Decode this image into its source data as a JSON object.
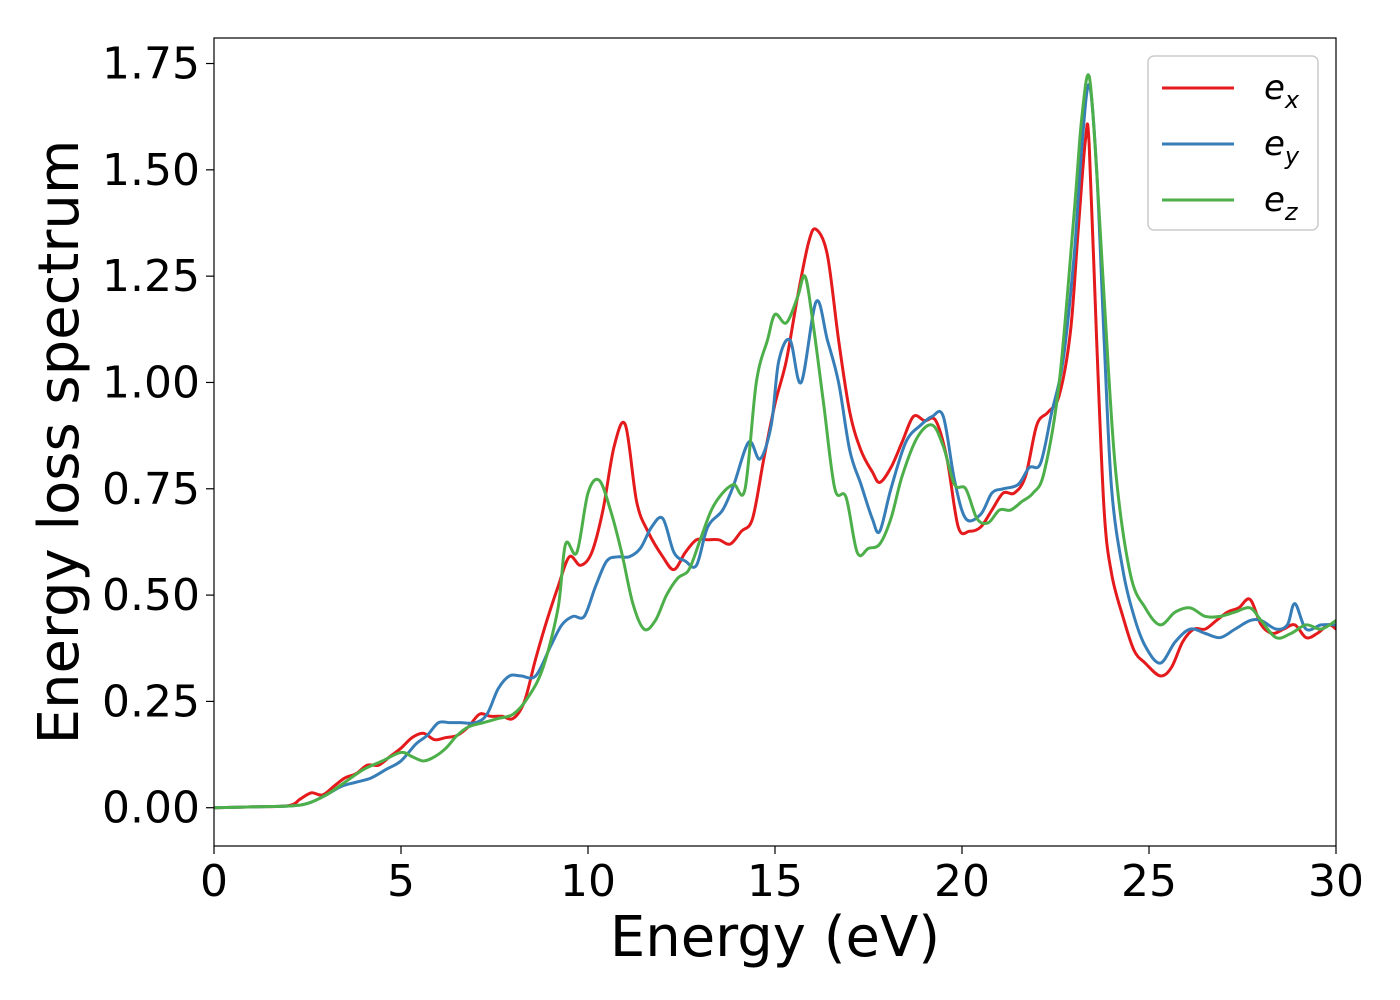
{
  "chart_data": {
    "type": "line",
    "title": "",
    "xlabel": "Energy (eV)",
    "ylabel": "Energy loss spectrum",
    "xlim": [
      0,
      30
    ],
    "ylim": [
      -0.09,
      1.81
    ],
    "xticks": [
      0,
      5,
      10,
      15,
      20,
      25,
      30
    ],
    "xtick_labels": [
      "0",
      "5",
      "10",
      "15",
      "20",
      "25",
      "30"
    ],
    "yticks": [
      0.0,
      0.25,
      0.5,
      0.75,
      1.0,
      1.25,
      1.5,
      1.75
    ],
    "ytick_labels": [
      "0.00",
      "0.25",
      "0.50",
      "0.75",
      "1.00",
      "1.25",
      "1.50",
      "1.75"
    ],
    "grid": false,
    "legend": {
      "position": "top-right",
      "entries": [
        {
          "base": "e",
          "sub": "x",
          "color": "#e41a1c"
        },
        {
          "base": "e",
          "sub": "y",
          "color": "#377eb8"
        },
        {
          "base": "e",
          "sub": "z",
          "color": "#4daf4a"
        }
      ]
    },
    "series": [
      {
        "name": "e_x",
        "color": "#e41a1c",
        "x": [
          0,
          1,
          2,
          2.3,
          2.6,
          2.9,
          3.2,
          3.5,
          3.8,
          4.1,
          4.4,
          4.7,
          5.0,
          5.3,
          5.6,
          5.9,
          6.2,
          6.5,
          6.8,
          7.1,
          7.4,
          7.7,
          8.0,
          8.3,
          8.6,
          8.9,
          9.2,
          9.5,
          9.8,
          10.1,
          10.4,
          10.7,
          11.0,
          11.3,
          11.6,
          12.0,
          12.3,
          12.6,
          12.9,
          13.2,
          13.5,
          13.8,
          14.1,
          14.4,
          14.7,
          15.0,
          15.3,
          15.6,
          15.9,
          16.1,
          16.4,
          16.7,
          17.0,
          17.3,
          17.6,
          17.8,
          18.1,
          18.4,
          18.7,
          19.0,
          19.3,
          19.6,
          19.9,
          20.2,
          20.5,
          20.8,
          21.1,
          21.4,
          21.7,
          22.0,
          22.3,
          22.6,
          22.9,
          23.1,
          23.3,
          23.4,
          23.6,
          23.8,
          24.0,
          24.3,
          24.6,
          24.9,
          25.3,
          25.6,
          25.9,
          26.2,
          26.5,
          26.8,
          27.1,
          27.4,
          27.7,
          28.0,
          28.3,
          28.6,
          28.9,
          29.2,
          29.5,
          29.8,
          30
        ],
        "y": [
          0,
          0.002,
          0.005,
          0.02,
          0.035,
          0.03,
          0.05,
          0.07,
          0.08,
          0.1,
          0.1,
          0.12,
          0.14,
          0.165,
          0.175,
          0.16,
          0.165,
          0.17,
          0.19,
          0.22,
          0.215,
          0.215,
          0.21,
          0.25,
          0.35,
          0.44,
          0.52,
          0.59,
          0.57,
          0.6,
          0.7,
          0.85,
          0.9,
          0.72,
          0.65,
          0.59,
          0.56,
          0.6,
          0.63,
          0.63,
          0.63,
          0.62,
          0.65,
          0.68,
          0.82,
          0.95,
          1.05,
          1.2,
          1.33,
          1.36,
          1.3,
          1.1,
          0.93,
          0.84,
          0.79,
          0.765,
          0.8,
          0.86,
          0.92,
          0.91,
          0.91,
          0.82,
          0.66,
          0.65,
          0.66,
          0.7,
          0.74,
          0.74,
          0.78,
          0.9,
          0.93,
          0.97,
          1.12,
          1.35,
          1.57,
          1.56,
          1.1,
          0.7,
          0.55,
          0.45,
          0.37,
          0.34,
          0.31,
          0.33,
          0.39,
          0.42,
          0.42,
          0.44,
          0.46,
          0.47,
          0.49,
          0.43,
          0.41,
          0.42,
          0.43,
          0.4,
          0.41,
          0.43,
          0.42
        ]
      },
      {
        "name": "e_y",
        "color": "#377eb8",
        "x": [
          0,
          1,
          2,
          2.5,
          3.0,
          3.4,
          3.8,
          4.2,
          4.6,
          5.0,
          5.4,
          5.7,
          6.0,
          6.3,
          6.6,
          7.0,
          7.3,
          7.6,
          7.9,
          8.2,
          8.6,
          9.0,
          9.3,
          9.6,
          9.9,
          10.2,
          10.5,
          10.8,
          11.1,
          11.4,
          11.7,
          12.0,
          12.3,
          12.6,
          12.9,
          13.2,
          13.6,
          13.9,
          14.3,
          14.6,
          14.9,
          15.1,
          15.4,
          15.7,
          16.1,
          16.4,
          16.7,
          17.0,
          17.3,
          17.6,
          17.8,
          18.1,
          18.5,
          18.9,
          19.2,
          19.5,
          19.8,
          20.1,
          20.5,
          20.8,
          21.1,
          21.5,
          21.8,
          22.1,
          22.4,
          22.7,
          23.0,
          23.2,
          23.4,
          23.6,
          23.8,
          24.0,
          24.3,
          24.6,
          24.9,
          25.3,
          25.7,
          26.1,
          26.5,
          26.9,
          27.3,
          27.7,
          28.0,
          28.4,
          28.7,
          28.9,
          29.2,
          29.6,
          30
        ],
        "y": [
          0,
          0.002,
          0.004,
          0.01,
          0.03,
          0.05,
          0.06,
          0.07,
          0.09,
          0.11,
          0.15,
          0.17,
          0.2,
          0.2,
          0.2,
          0.2,
          0.22,
          0.28,
          0.31,
          0.31,
          0.31,
          0.38,
          0.43,
          0.45,
          0.45,
          0.52,
          0.58,
          0.59,
          0.59,
          0.61,
          0.66,
          0.68,
          0.6,
          0.58,
          0.57,
          0.66,
          0.7,
          0.76,
          0.86,
          0.82,
          0.9,
          1.05,
          1.1,
          1.0,
          1.19,
          1.1,
          1.0,
          0.84,
          0.76,
          0.68,
          0.65,
          0.75,
          0.86,
          0.9,
          0.92,
          0.92,
          0.77,
          0.68,
          0.69,
          0.74,
          0.75,
          0.76,
          0.8,
          0.81,
          0.93,
          1.05,
          1.3,
          1.55,
          1.7,
          1.5,
          1.1,
          0.75,
          0.56,
          0.45,
          0.38,
          0.34,
          0.39,
          0.42,
          0.41,
          0.4,
          0.42,
          0.44,
          0.44,
          0.42,
          0.43,
          0.48,
          0.42,
          0.43,
          0.43
        ]
      },
      {
        "name": "e_z",
        "color": "#4daf4a",
        "x": [
          0,
          1,
          2,
          2.5,
          3.0,
          3.5,
          4.0,
          4.5,
          5.0,
          5.3,
          5.6,
          5.9,
          6.2,
          6.5,
          6.8,
          7.2,
          7.6,
          8.0,
          8.4,
          8.8,
          9.2,
          9.4,
          9.7,
          10.0,
          10.3,
          10.6,
          10.9,
          11.2,
          11.5,
          11.8,
          12.1,
          12.4,
          12.7,
          13.0,
          13.3,
          13.6,
          13.9,
          14.2,
          14.5,
          14.8,
          15.0,
          15.3,
          15.6,
          15.8,
          16.0,
          16.3,
          16.6,
          16.9,
          17.2,
          17.5,
          17.8,
          18.1,
          18.4,
          18.8,
          19.2,
          19.5,
          19.8,
          20.1,
          20.4,
          20.7,
          21.0,
          21.3,
          21.6,
          21.9,
          22.2,
          22.6,
          23.0,
          23.2,
          23.4,
          23.6,
          23.8,
          24.1,
          24.5,
          24.9,
          25.3,
          25.7,
          26.1,
          26.5,
          26.9,
          27.3,
          27.7,
          28.0,
          28.4,
          28.8,
          29.2,
          29.6,
          30
        ],
        "y": [
          0,
          0.002,
          0.004,
          0.01,
          0.03,
          0.06,
          0.09,
          0.11,
          0.13,
          0.12,
          0.11,
          0.12,
          0.14,
          0.17,
          0.19,
          0.2,
          0.21,
          0.22,
          0.26,
          0.33,
          0.47,
          0.62,
          0.6,
          0.74,
          0.77,
          0.7,
          0.6,
          0.48,
          0.42,
          0.44,
          0.5,
          0.54,
          0.56,
          0.63,
          0.7,
          0.74,
          0.76,
          0.75,
          1.0,
          1.1,
          1.16,
          1.14,
          1.2,
          1.25,
          1.15,
          0.95,
          0.75,
          0.73,
          0.6,
          0.61,
          0.62,
          0.68,
          0.78,
          0.87,
          0.9,
          0.85,
          0.76,
          0.75,
          0.68,
          0.67,
          0.7,
          0.7,
          0.72,
          0.74,
          0.79,
          1.0,
          1.4,
          1.62,
          1.72,
          1.5,
          1.2,
          0.8,
          0.55,
          0.47,
          0.43,
          0.46,
          0.47,
          0.45,
          0.45,
          0.46,
          0.47,
          0.44,
          0.4,
          0.41,
          0.43,
          0.42,
          0.44
        ]
      }
    ]
  }
}
